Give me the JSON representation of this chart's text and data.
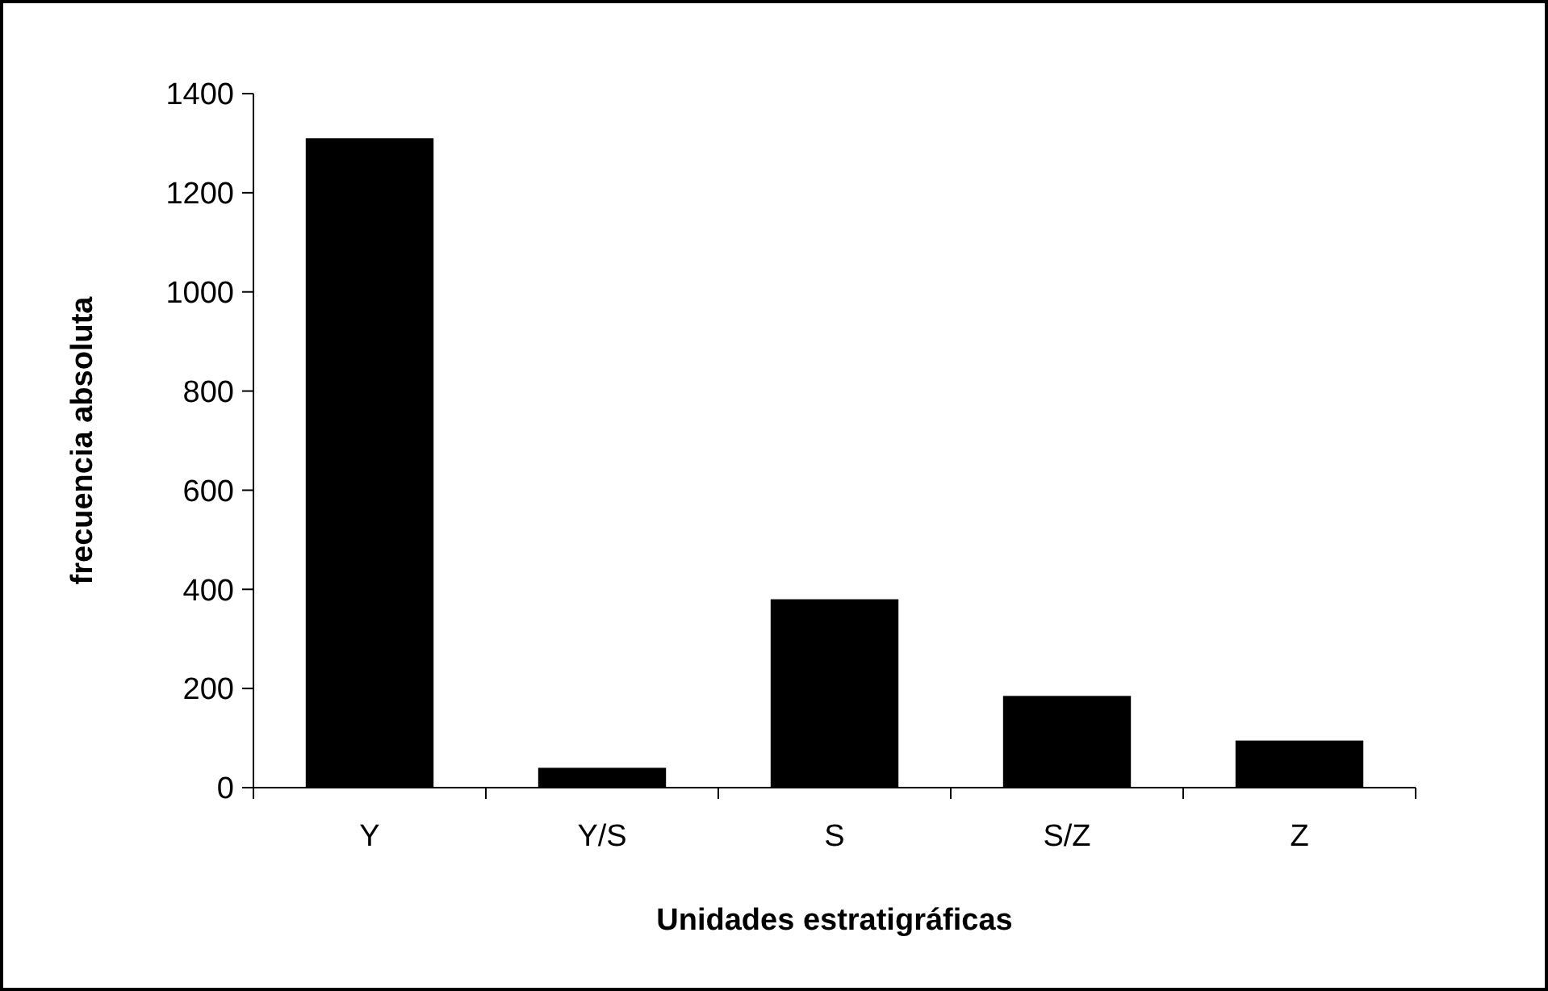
{
  "chart_data": {
    "type": "bar",
    "xlabel": "Unidades estratigráficas",
    "ylabel": "frecuencia absoluta",
    "categories": [
      "Y",
      "Y/S",
      "S",
      "S/Z",
      "Z"
    ],
    "values": [
      1310,
      40,
      380,
      185,
      95
    ],
    "color": "#000000",
    "ylim": [
      0,
      1400
    ],
    "yticks": [
      0,
      200,
      400,
      600,
      800,
      1000,
      1200,
      1400
    ],
    "grid": false
  }
}
